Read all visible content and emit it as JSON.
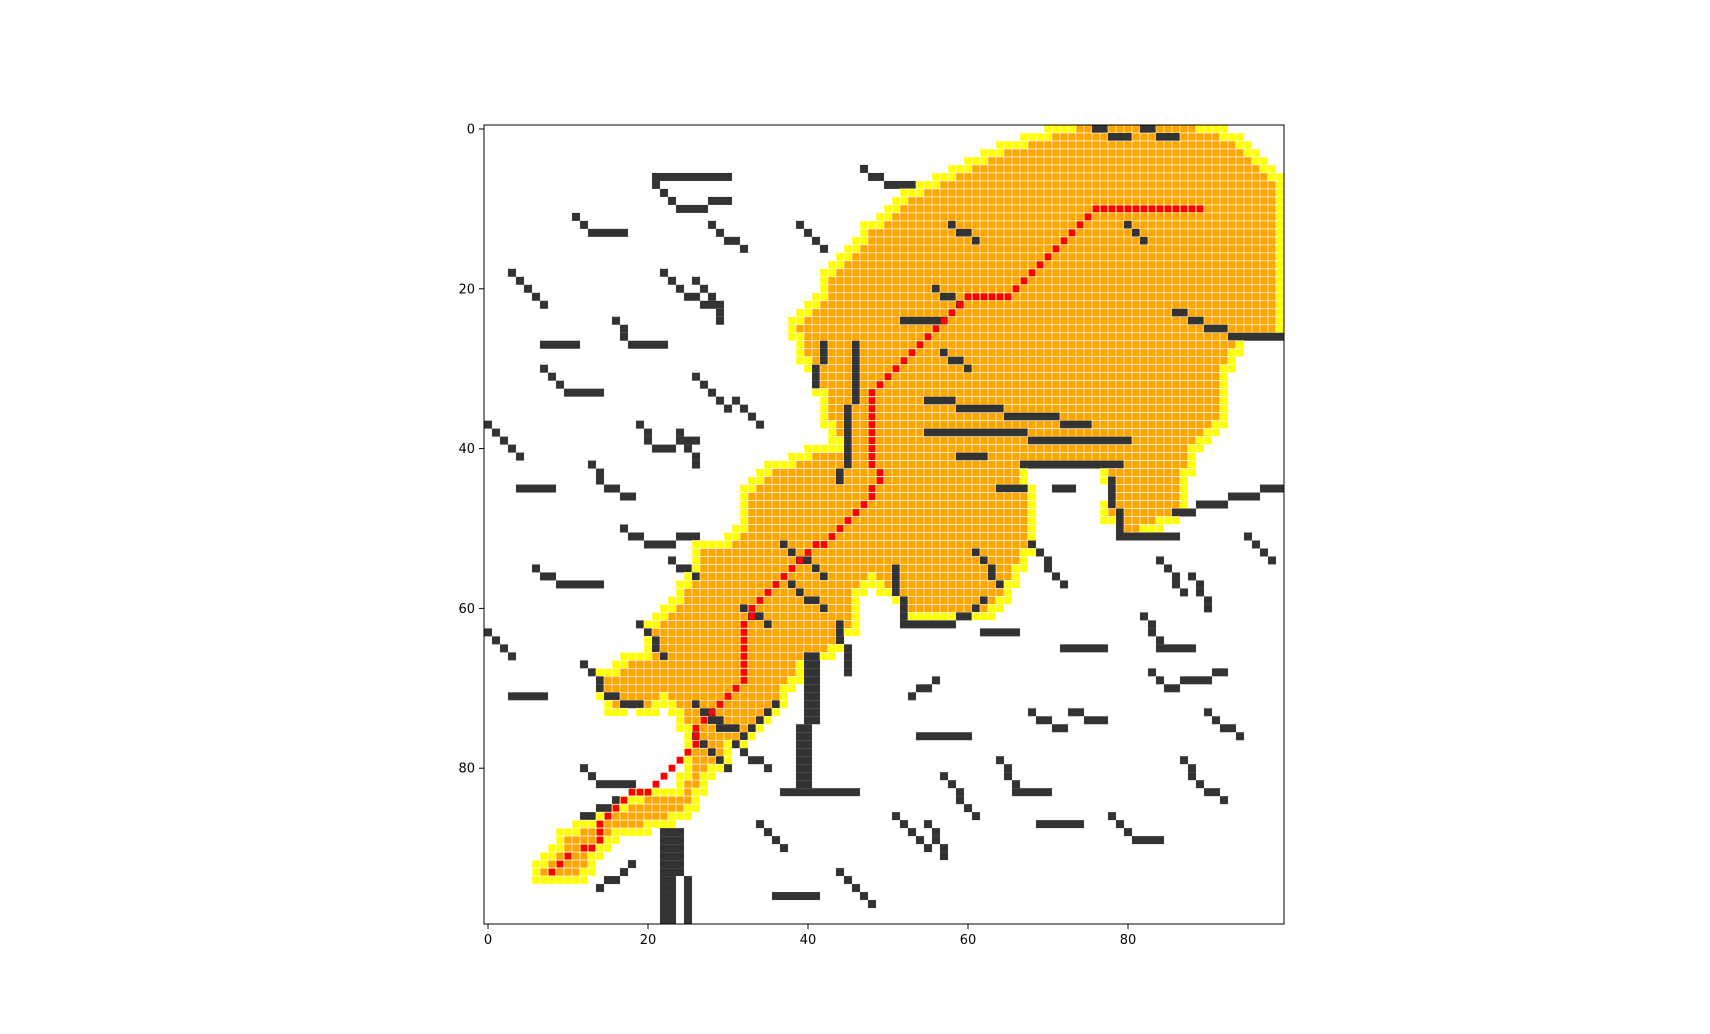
{
  "chart_data": {
    "type": "heatmap",
    "title": "",
    "xlabel": "",
    "ylabel": "",
    "grid_size": [
      100,
      100
    ],
    "xlim": [
      0,
      99
    ],
    "ylim": [
      99,
      0
    ],
    "x_ticks": [
      0,
      20,
      40,
      60,
      80
    ],
    "y_ticks": [
      0,
      20,
      40,
      60,
      80
    ],
    "x_tick_labels": [
      "0",
      "20",
      "40",
      "60",
      "80"
    ],
    "y_tick_labels": [
      "0",
      "20",
      "40",
      "60",
      "80"
    ],
    "legend": "none",
    "colors": {
      "free": "#ffffff",
      "obstacle": "#333333",
      "obstacle_light": "#7f7f7f",
      "explored": "#ffa500",
      "frontier": "#ffff00",
      "path": "#ff0000",
      "cell_grid": "#ffffff"
    },
    "obstacles": [
      {
        "from": [
          22,
          88
        ],
        "to": [
          22,
          99
        ],
        "width": 2
      },
      {
        "from": [
          24,
          88
        ],
        "to": [
          25,
          99
        ],
        "width": 1
      },
      {
        "from": [
          40,
          66
        ],
        "to": [
          39,
          82
        ],
        "width": 2
      },
      {
        "from": [
          42,
          83
        ],
        "to": [
          46,
          83
        ]
      },
      {
        "from": [
          26,
          76
        ],
        "to": [
          30,
          80
        ]
      },
      {
        "from": [
          31,
          77
        ],
        "to": [
          36,
          72
        ]
      },
      {
        "from": [
          12,
          86
        ],
        "to": [
          16,
          84
        ]
      },
      {
        "from": [
          14,
          95
        ],
        "to": [
          18,
          92
        ]
      },
      {
        "from": [
          52,
          24
        ],
        "to": [
          57,
          24
        ]
      },
      {
        "from": [
          57,
          28
        ],
        "to": [
          60,
          30
        ]
      },
      {
        "from": [
          55,
          34
        ],
        "to": [
          75,
          37
        ]
      },
      {
        "from": [
          55,
          38
        ],
        "to": [
          80,
          39
        ]
      },
      {
        "from": [
          67,
          42
        ],
        "to": [
          79,
          42
        ]
      },
      {
        "from": [
          78,
          44
        ],
        "to": [
          79,
          51
        ]
      },
      {
        "from": [
          79,
          51
        ],
        "to": [
          86,
          51
        ]
      },
      {
        "from": [
          86,
          48
        ],
        "to": [
          99,
          45
        ]
      },
      {
        "from": [
          86,
          23
        ],
        "to": [
          94,
          26
        ]
      },
      {
        "from": [
          94,
          26
        ],
        "to": [
          99,
          26
        ]
      },
      {
        "from": [
          51,
          55
        ],
        "to": [
          52,
          62
        ]
      },
      {
        "from": [
          52,
          62
        ],
        "to": [
          58,
          62
        ]
      },
      {
        "from": [
          58,
          62
        ],
        "to": [
          62,
          59
        ]
      },
      {
        "from": [
          62,
          63
        ],
        "to": [
          66,
          63
        ]
      },
      {
        "from": [
          45,
          42
        ],
        "to": [
          46,
          27
        ]
      },
      {
        "from": [
          45,
          40
        ],
        "to": [
          44,
          44
        ]
      },
      {
        "from": [
          42,
          27
        ],
        "to": [
          41,
          32
        ]
      },
      {
        "from": [
          38,
          57
        ],
        "to": [
          42,
          60
        ]
      },
      {
        "from": [
          45,
          68
        ],
        "to": [
          44,
          62
        ]
      },
      {
        "from": [
          76,
          0
        ],
        "to": [
          80,
          1
        ]
      },
      {
        "from": [
          82,
          0
        ],
        "to": [
          86,
          1
        ]
      },
      {
        "from": [
          80,
          12
        ],
        "to": [
          82,
          14
        ]
      },
      {
        "from": [
          59,
          41
        ],
        "to": [
          62,
          41
        ]
      },
      {
        "from": [
          64,
          45
        ],
        "to": [
          67,
          45
        ]
      },
      {
        "from": [
          71,
          45
        ],
        "to": [
          73,
          45
        ]
      },
      {
        "from": [
          28,
          73
        ],
        "to": [
          32,
          76
        ]
      }
    ],
    "obstacle_segments_small": [
      [
        [
          21,
          7
        ],
        [
          24,
          10
        ],
        [
          30,
          9
        ]
      ],
      [
        [
          11,
          11
        ],
        [
          13,
          13
        ],
        [
          17,
          13
        ]
      ],
      [
        [
          3,
          18
        ],
        [
          7,
          22
        ]
      ],
      [
        [
          7,
          27
        ],
        [
          11,
          27
        ]
      ],
      [
        [
          7,
          30
        ],
        [
          10,
          33
        ],
        [
          14,
          33
        ]
      ],
      [
        [
          16,
          24
        ],
        [
          18,
          27
        ],
        [
          22,
          27
        ]
      ],
      [
        [
          0,
          37
        ],
        [
          4,
          41
        ]
      ],
      [
        [
          4,
          45
        ],
        [
          8,
          45
        ]
      ],
      [
        [
          13,
          42
        ],
        [
          15,
          45
        ],
        [
          18,
          46
        ]
      ],
      [
        [
          17,
          50
        ],
        [
          20,
          52
        ],
        [
          26,
          51
        ]
      ],
      [
        [
          6,
          55
        ],
        [
          10,
          57
        ],
        [
          14,
          57
        ]
      ],
      [
        [
          0,
          63
        ],
        [
          3,
          66
        ]
      ],
      [
        [
          3,
          71
        ],
        [
          7,
          71
        ]
      ],
      [
        [
          12,
          67
        ],
        [
          15,
          71
        ],
        [
          19,
          72
        ]
      ],
      [
        [
          12,
          80
        ],
        [
          14,
          82
        ],
        [
          18,
          82
        ]
      ],
      [
        [
          21,
          6
        ],
        [
          30,
          6
        ]
      ],
      [
        [
          28,
          12
        ],
        [
          32,
          15
        ]
      ],
      [
        [
          22,
          18
        ],
        [
          25,
          21
        ],
        [
          28,
          22
        ]
      ],
      [
        [
          26,
          19
        ],
        [
          29,
          22
        ],
        [
          29,
          24
        ]
      ],
      [
        [
          19,
          37
        ],
        [
          21,
          40
        ],
        [
          26,
          39
        ]
      ],
      [
        [
          24,
          38
        ],
        [
          26,
          42
        ]
      ],
      [
        [
          26,
          31
        ],
        [
          30,
          35
        ]
      ],
      [
        [
          31,
          34
        ],
        [
          34,
          37
        ]
      ],
      [
        [
          23,
          54
        ],
        [
          26,
          56
        ]
      ],
      [
        [
          19,
          62
        ],
        [
          22,
          66
        ]
      ],
      [
        [
          32,
          60
        ],
        [
          35,
          62
        ]
      ],
      [
        [
          37,
          52
        ],
        [
          42,
          56
        ]
      ],
      [
        [
          26,
          72
        ],
        [
          29,
          75
        ]
      ],
      [
        [
          32,
          78
        ],
        [
          35,
          80
        ]
      ],
      [
        [
          37,
          83
        ],
        [
          41,
          83
        ]
      ],
      [
        [
          34,
          87
        ],
        [
          37,
          90
        ]
      ],
      [
        [
          36,
          96
        ],
        [
          41,
          96
        ]
      ],
      [
        [
          44,
          93
        ],
        [
          48,
          97
        ]
      ],
      [
        [
          51,
          86
        ],
        [
          55,
          90
        ]
      ],
      [
        [
          55,
          87
        ],
        [
          57,
          91
        ]
      ],
      [
        [
          54,
          76
        ],
        [
          60,
          76
        ]
      ],
      [
        [
          53,
          71
        ],
        [
          56,
          69
        ]
      ],
      [
        [
          57,
          81
        ],
        [
          61,
          86
        ]
      ],
      [
        [
          64,
          79
        ],
        [
          66,
          83
        ],
        [
          70,
          83
        ]
      ],
      [
        [
          68,
          73
        ],
        [
          72,
          75
        ]
      ],
      [
        [
          73,
          73
        ],
        [
          77,
          74
        ]
      ],
      [
        [
          69,
          87
        ],
        [
          74,
          87
        ]
      ],
      [
        [
          78,
          86
        ],
        [
          81,
          89
        ],
        [
          84,
          89
        ]
      ],
      [
        [
          72,
          65
        ],
        [
          77,
          65
        ]
      ],
      [
        [
          82,
          61
        ],
        [
          84,
          65
        ],
        [
          88,
          65
        ]
      ],
      [
        [
          83,
          68
        ],
        [
          85,
          70
        ],
        [
          92,
          68
        ]
      ],
      [
        [
          90,
          73
        ],
        [
          94,
          76
        ]
      ],
      [
        [
          87,
          79
        ],
        [
          89,
          82
        ],
        [
          92,
          84
        ]
      ],
      [
        [
          84,
          54
        ],
        [
          87,
          58
        ]
      ],
      [
        [
          88,
          56
        ],
        [
          90,
          60
        ]
      ],
      [
        [
          95,
          51
        ],
        [
          98,
          54
        ]
      ],
      [
        [
          68,
          52
        ],
        [
          72,
          57
        ]
      ],
      [
        [
          61,
          53
        ],
        [
          64,
          57
        ]
      ],
      [
        [
          47,
          5
        ],
        [
          50,
          7
        ],
        [
          53,
          7
        ]
      ],
      [
        [
          39,
          12
        ],
        [
          42,
          15
        ]
      ],
      [
        [
          58,
          12
        ],
        [
          61,
          14
        ]
      ],
      [
        [
          56,
          20
        ],
        [
          59,
          22
        ]
      ]
    ],
    "explored_region_outline": [
      [
        6,
        94
      ],
      [
        10,
        89
      ],
      [
        15,
        86
      ],
      [
        20,
        84
      ],
      [
        24,
        84
      ],
      [
        26,
        79
      ],
      [
        25,
        74
      ],
      [
        24,
        72
      ],
      [
        22,
        71
      ],
      [
        19,
        73
      ],
      [
        15,
        72
      ],
      [
        15,
        69
      ],
      [
        18,
        67
      ],
      [
        21,
        66
      ],
      [
        21,
        63
      ],
      [
        24,
        60
      ],
      [
        26,
        56
      ],
      [
        27,
        53
      ],
      [
        31,
        52
      ],
      [
        33,
        50
      ],
      [
        33,
        46
      ],
      [
        36,
        43
      ],
      [
        41,
        41
      ],
      [
        45,
        40
      ],
      [
        43,
        36
      ],
      [
        42,
        32
      ],
      [
        40,
        28
      ],
      [
        39,
        25
      ],
      [
        42,
        22
      ],
      [
        43,
        19
      ],
      [
        46,
        16
      ],
      [
        48,
        13
      ],
      [
        51,
        11
      ],
      [
        53,
        9
      ],
      [
        57,
        7
      ],
      [
        61,
        5
      ],
      [
        65,
        3
      ],
      [
        68,
        2
      ],
      [
        71,
        1
      ],
      [
        74,
        0
      ],
      [
        88,
        0
      ],
      [
        91,
        1
      ],
      [
        95,
        3
      ],
      [
        98,
        6
      ],
      [
        99,
        9
      ],
      [
        99,
        26
      ],
      [
        94,
        26
      ],
      [
        92,
        30
      ],
      [
        91,
        37
      ],
      [
        88,
        40
      ],
      [
        87,
        43
      ],
      [
        86,
        48
      ],
      [
        80,
        51
      ],
      [
        78,
        48
      ],
      [
        78,
        43
      ],
      [
        74,
        42
      ],
      [
        67,
        42
      ],
      [
        67,
        44
      ],
      [
        68,
        48
      ],
      [
        67,
        53
      ],
      [
        65,
        57
      ],
      [
        63,
        60
      ],
      [
        58,
        61
      ],
      [
        53,
        61
      ],
      [
        51,
        58
      ],
      [
        48,
        55
      ],
      [
        46,
        58
      ],
      [
        46,
        61
      ],
      [
        43,
        65
      ],
      [
        39,
        67
      ],
      [
        37,
        70
      ],
      [
        36,
        73
      ],
      [
        33,
        75
      ],
      [
        30,
        77
      ],
      [
        27,
        81
      ],
      [
        25,
        85
      ],
      [
        20,
        87
      ],
      [
        16,
        88
      ],
      [
        13,
        91
      ],
      [
        11,
        94
      ]
    ],
    "path": [
      [
        8,
        93
      ],
      [
        9,
        92
      ],
      [
        10,
        91
      ],
      [
        12,
        90
      ],
      [
        13,
        90
      ],
      [
        14,
        89
      ],
      [
        14,
        88
      ],
      [
        14,
        87
      ],
      [
        15,
        86
      ],
      [
        16,
        85
      ],
      [
        17,
        84
      ],
      [
        18,
        83
      ],
      [
        19,
        83
      ],
      [
        20,
        83
      ],
      [
        21,
        82
      ],
      [
        22,
        81
      ],
      [
        23,
        80
      ],
      [
        24,
        79
      ],
      [
        25,
        78
      ],
      [
        26,
        77
      ],
      [
        26,
        76
      ],
      [
        26,
        75
      ],
      [
        27,
        74
      ],
      [
        28,
        73
      ],
      [
        29,
        72
      ],
      [
        30,
        71
      ],
      [
        31,
        70
      ],
      [
        32,
        69
      ],
      [
        32,
        68
      ],
      [
        32,
        67
      ],
      [
        32,
        66
      ],
      [
        32,
        65
      ],
      [
        32,
        64
      ],
      [
        32,
        63
      ],
      [
        32,
        62
      ],
      [
        33,
        61
      ],
      [
        33,
        60
      ],
      [
        34,
        59
      ],
      [
        35,
        58
      ],
      [
        36,
        57
      ],
      [
        37,
        56
      ],
      [
        38,
        55
      ],
      [
        39,
        54
      ],
      [
        40,
        53
      ],
      [
        41,
        52
      ],
      [
        42,
        52
      ],
      [
        43,
        51
      ],
      [
        44,
        50
      ],
      [
        45,
        49
      ],
      [
        46,
        48
      ],
      [
        47,
        47
      ],
      [
        48,
        46
      ],
      [
        48,
        45
      ],
      [
        49,
        44
      ],
      [
        49,
        43
      ],
      [
        48,
        42
      ],
      [
        48,
        41
      ],
      [
        48,
        40
      ],
      [
        48,
        39
      ],
      [
        48,
        38
      ],
      [
        48,
        37
      ],
      [
        48,
        36
      ],
      [
        48,
        35
      ],
      [
        48,
        34
      ],
      [
        48,
        33
      ],
      [
        49,
        32
      ],
      [
        50,
        31
      ],
      [
        51,
        30
      ],
      [
        52,
        29
      ],
      [
        53,
        28
      ],
      [
        54,
        27
      ],
      [
        55,
        26
      ],
      [
        56,
        25
      ],
      [
        57,
        24
      ],
      [
        58,
        23
      ],
      [
        59,
        22
      ],
      [
        60,
        21
      ],
      [
        61,
        21
      ],
      [
        62,
        21
      ],
      [
        63,
        21
      ],
      [
        64,
        21
      ],
      [
        65,
        21
      ],
      [
        66,
        20
      ],
      [
        67,
        19
      ],
      [
        68,
        18
      ],
      [
        69,
        17
      ],
      [
        70,
        16
      ],
      [
        71,
        15
      ],
      [
        72,
        14
      ],
      [
        73,
        13
      ],
      [
        74,
        12
      ],
      [
        75,
        11
      ],
      [
        76,
        10
      ],
      [
        77,
        10
      ],
      [
        78,
        10
      ],
      [
        79,
        10
      ],
      [
        80,
        10
      ],
      [
        81,
        10
      ],
      [
        82,
        10
      ],
      [
        83,
        10
      ],
      [
        84,
        10
      ],
      [
        85,
        10
      ],
      [
        86,
        10
      ],
      [
        87,
        10
      ],
      [
        88,
        10
      ],
      [
        89,
        10
      ]
    ]
  }
}
